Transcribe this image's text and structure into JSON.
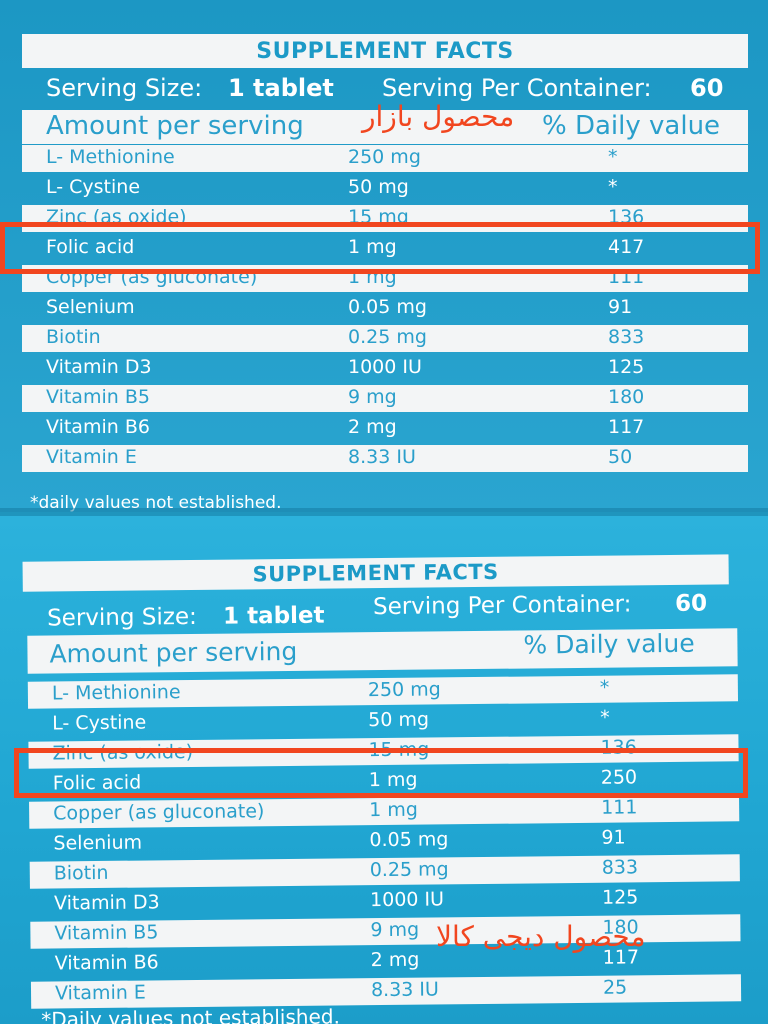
{
  "panels": [
    {
      "title": "SUPPLEMENT FACTS",
      "serving_size_label": "Serving Size:",
      "serving_size_value": "1 tablet",
      "serving_container_label": "Serving Per Container:",
      "serving_container_value": "60",
      "amount_header": "Amount per serving",
      "dv_header": "% Daily value",
      "rows": [
        {
          "name": "L- Methionine",
          "amount": "250 mg",
          "dv": "*"
        },
        {
          "name": "L- Cystine",
          "amount": "50 mg",
          "dv": "*"
        },
        {
          "name": "Zinc (as oxide)",
          "amount": "15 mg",
          "dv": "136"
        },
        {
          "name": "Folic acid",
          "amount": "1 mg",
          "dv": "417"
        },
        {
          "name": "Copper (as gluconate)",
          "amount": "1 mg",
          "dv": "111"
        },
        {
          "name": "Selenium",
          "amount": "0.05 mg",
          "dv": "91"
        },
        {
          "name": "Biotin",
          "amount": "0.25 mg",
          "dv": "833"
        },
        {
          "name": "Vitamin D3",
          "amount": "1000 IU",
          "dv": "125"
        },
        {
          "name": "Vitamin B5",
          "amount": "9 mg",
          "dv": "180"
        },
        {
          "name": "Vitamin B6",
          "amount": "2 mg",
          "dv": "117"
        },
        {
          "name": "Vitamin E",
          "amount": "8.33 IU",
          "dv": "50"
        }
      ],
      "footnote": "*daily values not established.",
      "annotation": "محصول بازار"
    },
    {
      "title": "SUPPLEMENT FACTS",
      "serving_size_label": "Serving Size:",
      "serving_size_value": "1 tablet",
      "serving_container_label": "Serving Per Container:",
      "serving_container_value": "60",
      "amount_header": "Amount per serving",
      "dv_header": "% Daily value",
      "rows": [
        {
          "name": "L- Methionine",
          "amount": "250 mg",
          "dv": "*"
        },
        {
          "name": "L- Cystine",
          "amount": "50 mg",
          "dv": "*"
        },
        {
          "name": "Zinc (as oxide)",
          "amount": "15 mg",
          "dv": "136"
        },
        {
          "name": "Folic acid",
          "amount": "1 mg",
          "dv": "250"
        },
        {
          "name": "Copper (as gluconate)",
          "amount": "1 mg",
          "dv": "111"
        },
        {
          "name": "Selenium",
          "amount": "0.05 mg",
          "dv": "91"
        },
        {
          "name": "Biotin",
          "amount": "0.25 mg",
          "dv": "833"
        },
        {
          "name": "Vitamin D3",
          "amount": "1000 IU",
          "dv": "125"
        },
        {
          "name": "Vitamin B5",
          "amount": "9 mg",
          "dv": "180"
        },
        {
          "name": "Vitamin B6",
          "amount": "2 mg",
          "dv": "117"
        },
        {
          "name": "Vitamin E",
          "amount": "8.33 IU",
          "dv": "25"
        }
      ],
      "footnote": "*Daily values not established.",
      "annotation": "محصول دیجی کالا"
    }
  ],
  "colors": {
    "label_blue": "#1d9cc8",
    "row_white": "#f3f5f6",
    "highlight_red": "#f1461f"
  }
}
